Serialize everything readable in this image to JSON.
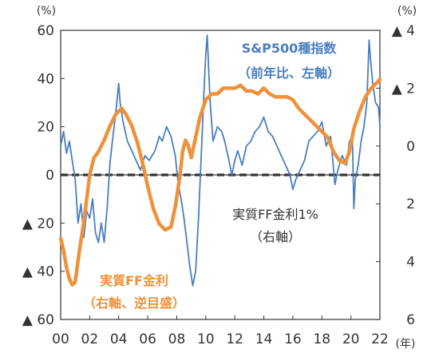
{
  "chart_data": {
    "type": "line",
    "units": {
      "left": "(%)",
      "right": "(%)",
      "x": "(年)"
    },
    "x_ticks": [
      "00",
      "02",
      "04",
      "06",
      "08",
      "10",
      "12",
      "14",
      "16",
      "18",
      "20",
      "22"
    ],
    "x_range": [
      2000.0,
      2022.0
    ],
    "y_left": {
      "range": [
        -60,
        60
      ],
      "ticks": [
        {
          "value": 60,
          "label": "60"
        },
        {
          "value": 40,
          "label": "40"
        },
        {
          "value": 20,
          "label": "20"
        },
        {
          "value": 0,
          "label": "0"
        },
        {
          "value": -20,
          "label": "▲ 20"
        },
        {
          "value": -40,
          "label": "▲ 40"
        },
        {
          "value": -60,
          "label": "▲ 60"
        }
      ]
    },
    "y_right": {
      "range": [
        -4,
        6
      ],
      "inverted": true,
      "ticks": [
        {
          "value": -4,
          "label": "▲ 4"
        },
        {
          "value": -2,
          "label": "▲ 2"
        },
        {
          "value": 0,
          "label": "0"
        },
        {
          "value": 2,
          "label": "2"
        },
        {
          "value": 4,
          "label": "4"
        },
        {
          "value": 6,
          "label": "6"
        }
      ]
    },
    "annotations": {
      "sp500": [
        "S&P500種指数",
        "（前年比、左軸）"
      ],
      "ffrate": [
        "実質FF金利",
        "（右軸、逆目盛）"
      ],
      "ref_line": [
        "実質FF金利1%",
        "（右軸）"
      ]
    },
    "reference_line": {
      "axis": "right",
      "value": 1,
      "style": "dashed",
      "color": "#333333"
    },
    "grid": false,
    "series": [
      {
        "key": "sp500",
        "axis": "left",
        "color": "#4a7ebf",
        "points": [
          [
            2000.0,
            12
          ],
          [
            2000.2,
            18
          ],
          [
            2000.4,
            9
          ],
          [
            2000.6,
            14
          ],
          [
            2000.8,
            6
          ],
          [
            2001.0,
            -2
          ],
          [
            2001.2,
            -20
          ],
          [
            2001.4,
            -12
          ],
          [
            2001.6,
            -26
          ],
          [
            2001.8,
            -15
          ],
          [
            2002.0,
            -18
          ],
          [
            2002.2,
            -10
          ],
          [
            2002.4,
            -24
          ],
          [
            2002.6,
            -28
          ],
          [
            2002.8,
            -20
          ],
          [
            2003.0,
            -28
          ],
          [
            2003.2,
            -14
          ],
          [
            2003.4,
            5
          ],
          [
            2003.6,
            16
          ],
          [
            2003.8,
            26
          ],
          [
            2004.0,
            38
          ],
          [
            2004.1,
            30
          ],
          [
            2004.3,
            22
          ],
          [
            2004.6,
            14
          ],
          [
            2004.9,
            10
          ],
          [
            2005.2,
            6
          ],
          [
            2005.5,
            2
          ],
          [
            2005.8,
            8
          ],
          [
            2006.1,
            6
          ],
          [
            2006.5,
            10
          ],
          [
            2006.8,
            16
          ],
          [
            2007.0,
            14
          ],
          [
            2007.3,
            20
          ],
          [
            2007.6,
            16
          ],
          [
            2007.9,
            8
          ],
          [
            2008.1,
            -4
          ],
          [
            2008.3,
            -10
          ],
          [
            2008.5,
            -18
          ],
          [
            2008.7,
            -28
          ],
          [
            2008.9,
            -38
          ],
          [
            2009.1,
            -46
          ],
          [
            2009.3,
            -40
          ],
          [
            2009.5,
            -18
          ],
          [
            2009.7,
            10
          ],
          [
            2009.9,
            38
          ],
          [
            2010.0,
            50
          ],
          [
            2010.1,
            58
          ],
          [
            2010.3,
            30
          ],
          [
            2010.5,
            14
          ],
          [
            2010.8,
            20
          ],
          [
            2011.1,
            18
          ],
          [
            2011.3,
            14
          ],
          [
            2011.6,
            6
          ],
          [
            2011.8,
            0
          ],
          [
            2012.0,
            6
          ],
          [
            2012.2,
            10
          ],
          [
            2012.5,
            4
          ],
          [
            2012.8,
            12
          ],
          [
            2013.1,
            14
          ],
          [
            2013.4,
            18
          ],
          [
            2013.7,
            20
          ],
          [
            2014.0,
            24
          ],
          [
            2014.3,
            18
          ],
          [
            2014.6,
            16
          ],
          [
            2014.9,
            12
          ],
          [
            2015.2,
            8
          ],
          [
            2015.5,
            4
          ],
          [
            2015.8,
            0
          ],
          [
            2016.0,
            -6
          ],
          [
            2016.2,
            -2
          ],
          [
            2016.5,
            2
          ],
          [
            2016.8,
            6
          ],
          [
            2017.1,
            14
          ],
          [
            2017.4,
            16
          ],
          [
            2017.7,
            18
          ],
          [
            2018.0,
            22
          ],
          [
            2018.3,
            12
          ],
          [
            2018.6,
            16
          ],
          [
            2018.9,
            -4
          ],
          [
            2019.1,
            2
          ],
          [
            2019.4,
            8
          ],
          [
            2019.7,
            4
          ],
          [
            2019.9,
            14
          ],
          [
            2020.1,
            16
          ],
          [
            2020.2,
            -14
          ],
          [
            2020.3,
            -2
          ],
          [
            2020.5,
            4
          ],
          [
            2020.7,
            14
          ],
          [
            2020.9,
            20
          ],
          [
            2021.1,
            30
          ],
          [
            2021.25,
            56
          ],
          [
            2021.35,
            48
          ],
          [
            2021.5,
            38
          ],
          [
            2021.7,
            30
          ],
          [
            2021.9,
            28
          ],
          [
            2022.0,
            20
          ]
        ]
      },
      {
        "key": "ffrate",
        "axis": "right",
        "color": "#f0913a",
        "points": [
          [
            2000.0,
            3.2
          ],
          [
            2000.2,
            3.6
          ],
          [
            2000.4,
            4.2
          ],
          [
            2000.6,
            4.6
          ],
          [
            2000.8,
            4.8
          ],
          [
            2001.0,
            4.7
          ],
          [
            2001.3,
            3.6
          ],
          [
            2001.6,
            2.6
          ],
          [
            2002.0,
            1.0
          ],
          [
            2002.3,
            0.4
          ],
          [
            2002.6,
            0.2
          ],
          [
            2003.0,
            -0.2
          ],
          [
            2003.4,
            -0.7
          ],
          [
            2003.8,
            -1.1
          ],
          [
            2004.2,
            -1.3
          ],
          [
            2004.5,
            -1.1
          ],
          [
            2004.9,
            -0.7
          ],
          [
            2005.3,
            -0.1
          ],
          [
            2005.7,
            0.7
          ],
          [
            2006.0,
            1.4
          ],
          [
            2006.4,
            2.2
          ],
          [
            2006.8,
            2.7
          ],
          [
            2007.2,
            2.9
          ],
          [
            2007.6,
            2.8
          ],
          [
            2007.9,
            2.1
          ],
          [
            2008.2,
            1.1
          ],
          [
            2008.4,
            0.2
          ],
          [
            2008.6,
            -0.2
          ],
          [
            2008.8,
            0.0
          ],
          [
            2009.0,
            0.4
          ],
          [
            2009.3,
            -0.3
          ],
          [
            2009.6,
            -1.0
          ],
          [
            2010.0,
            -1.6
          ],
          [
            2010.4,
            -1.8
          ],
          [
            2010.8,
            -1.8
          ],
          [
            2011.2,
            -2.0
          ],
          [
            2011.6,
            -2.0
          ],
          [
            2012.0,
            -2.0
          ],
          [
            2012.4,
            -2.1
          ],
          [
            2012.8,
            -1.9
          ],
          [
            2013.2,
            -1.9
          ],
          [
            2013.6,
            -1.8
          ],
          [
            2014.0,
            -2.0
          ],
          [
            2014.4,
            -1.8
          ],
          [
            2014.8,
            -1.7
          ],
          [
            2015.2,
            -1.7
          ],
          [
            2015.6,
            -1.7
          ],
          [
            2016.0,
            -1.6
          ],
          [
            2016.4,
            -1.3
          ],
          [
            2016.8,
            -1.1
          ],
          [
            2017.2,
            -0.9
          ],
          [
            2017.6,
            -0.7
          ],
          [
            2018.0,
            -0.5
          ],
          [
            2018.4,
            -0.3
          ],
          [
            2018.8,
            0.2
          ],
          [
            2019.2,
            0.5
          ],
          [
            2019.6,
            0.6
          ],
          [
            2019.9,
            0.2
          ],
          [
            2020.2,
            -0.6
          ],
          [
            2020.6,
            -1.2
          ],
          [
            2021.0,
            -1.7
          ],
          [
            2021.4,
            -2.0
          ],
          [
            2021.8,
            -2.2
          ],
          [
            2022.0,
            -2.3
          ]
        ]
      }
    ]
  }
}
